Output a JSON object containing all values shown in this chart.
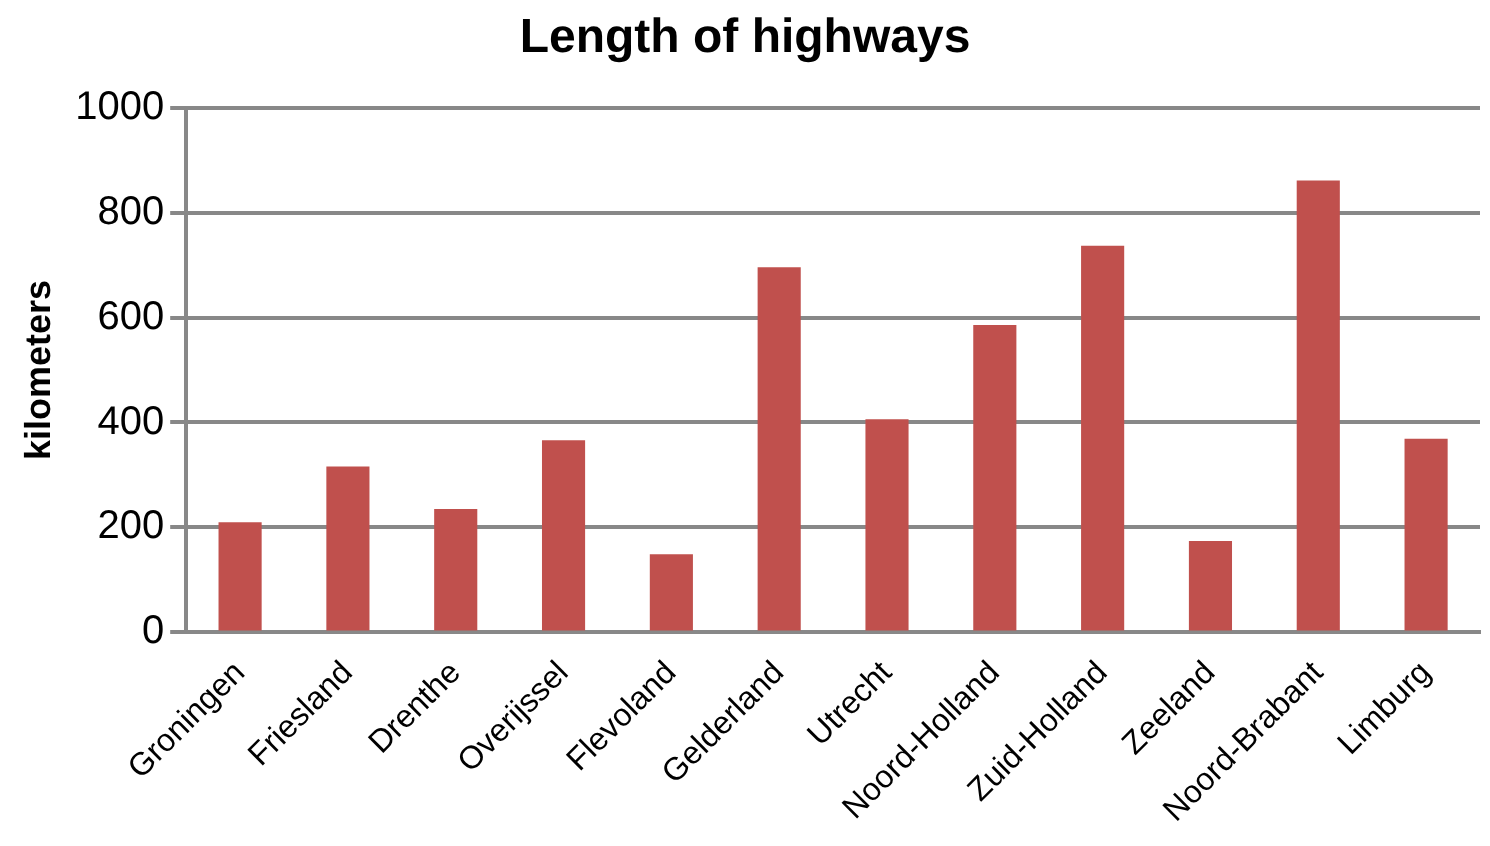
{
  "chart_data": {
    "type": "bar",
    "title": "Length of highways",
    "ylabel": "kilometers",
    "categories": [
      "Groningen",
      "Friesland",
      "Drenthe",
      "Overijssel",
      "Flevoland",
      "Gelderland",
      "Utrecht",
      "Noord-Holland",
      "Zuid-Holland",
      "Zeeland",
      "Noord-Brabant",
      "Limburg"
    ],
    "values": [
      210,
      316,
      235,
      366,
      149,
      696,
      406,
      586,
      737,
      174,
      861,
      369
    ],
    "color": "#c0504d",
    "ylim": [
      0,
      1000
    ],
    "yticks": [
      0,
      200,
      400,
      600,
      800,
      1000
    ],
    "grid": "y",
    "legend": false
  }
}
